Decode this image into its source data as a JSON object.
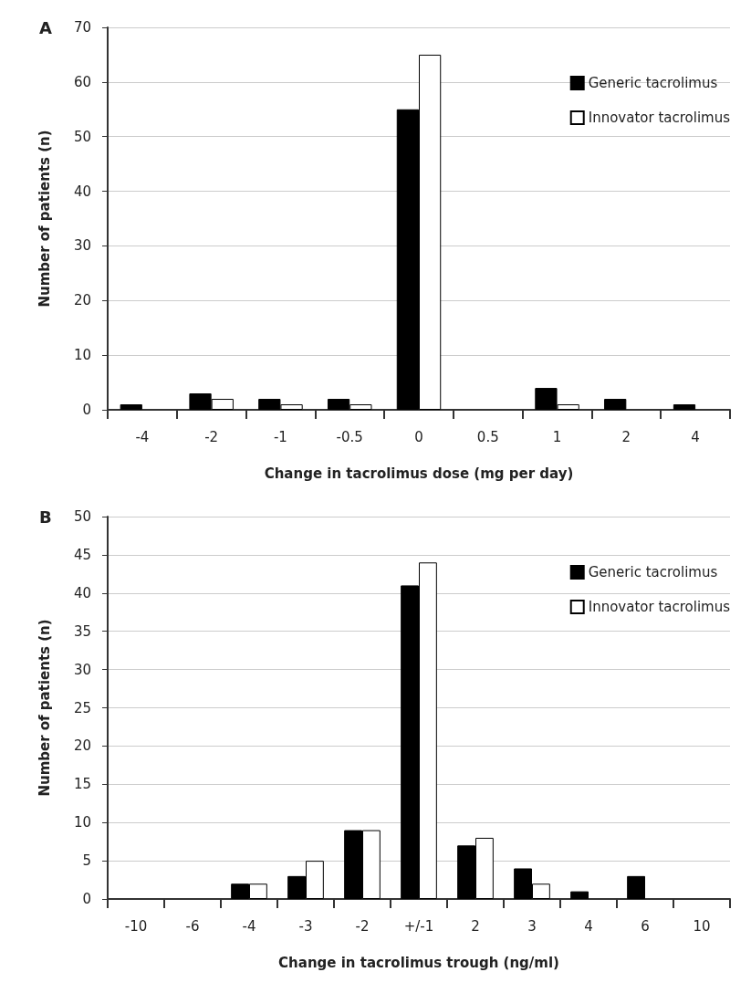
{
  "chart_data": [
    {
      "type": "bar",
      "title": "A",
      "xlabel": "Change in tacrolimus dose (mg per day)",
      "ylabel": "Number of patients (n)",
      "categories": [
        "-4",
        "-2",
        "-1",
        "-0.5",
        "0",
        "0.5",
        "1",
        "2",
        "4"
      ],
      "series": [
        {
          "name": "Generic tacrolimus",
          "color": "#000000",
          "values": [
            1,
            3,
            2,
            2,
            55,
            0,
            4,
            2,
            1
          ]
        },
        {
          "name": "Innovator tacrolimus",
          "color": "#ffffff",
          "values": [
            0,
            2,
            1,
            1,
            65,
            0,
            1,
            0,
            0
          ]
        }
      ],
      "ylim": [
        0,
        70
      ],
      "yticks": [
        0,
        10,
        20,
        30,
        40,
        50,
        60,
        70
      ],
      "grid": "y",
      "legend": "top right"
    },
    {
      "type": "bar",
      "title": "B",
      "xlabel": "Change in tacrolimus trough (ng/ml)",
      "ylabel": "Number of patients (n)",
      "categories": [
        "-10",
        "-6",
        "-4",
        "-3",
        "-2",
        "+/-1",
        "2",
        "3",
        "4",
        "6",
        "10"
      ],
      "series": [
        {
          "name": "Generic tacrolimus",
          "color": "#000000",
          "values": [
            0,
            0,
            2,
            3,
            9,
            41,
            7,
            4,
            1,
            3,
            0
          ]
        },
        {
          "name": "Innovator tacrolimus",
          "color": "#ffffff",
          "values": [
            0,
            0,
            2,
            5,
            9,
            44,
            8,
            2,
            0,
            0,
            0
          ]
        }
      ],
      "ylim": [
        0,
        50
      ],
      "yticks": [
        0,
        5,
        10,
        15,
        20,
        25,
        30,
        35,
        40,
        45,
        50
      ],
      "grid": "y",
      "legend": "top right"
    }
  ]
}
